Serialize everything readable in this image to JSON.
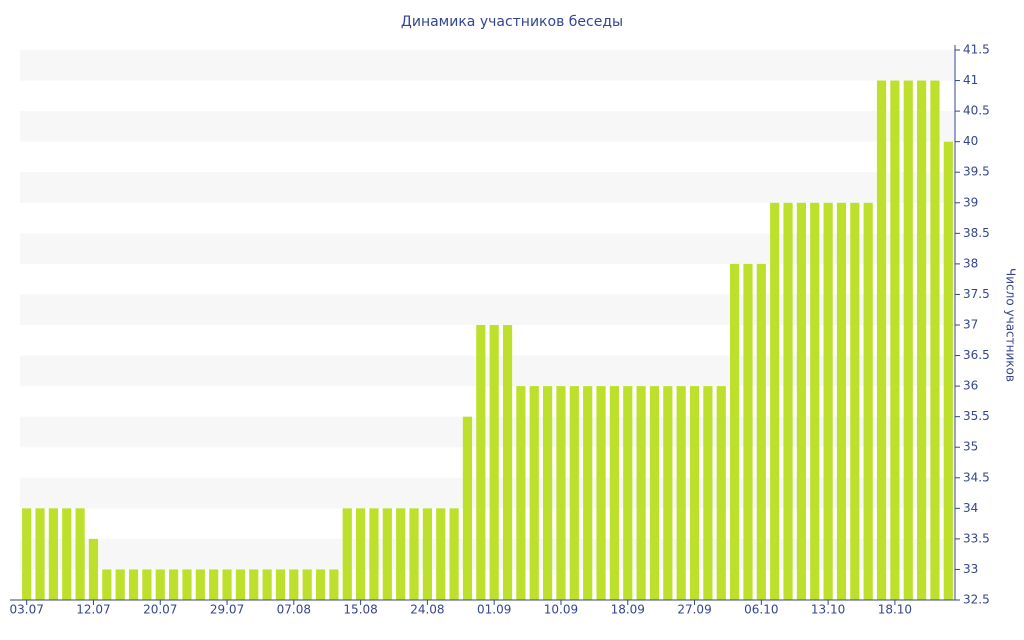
{
  "chart_data": {
    "type": "bar",
    "title": "Динамика участников беседы",
    "y_label": "Число участников",
    "categories": [
      "03.07",
      null,
      null,
      null,
      null,
      "12.07",
      null,
      null,
      null,
      null,
      "20.07",
      null,
      null,
      null,
      null,
      "29.07",
      null,
      null,
      null,
      null,
      "07.08",
      null,
      null,
      null,
      null,
      "15.08",
      null,
      null,
      null,
      null,
      "24.08",
      null,
      null,
      null,
      null,
      "01.09",
      null,
      null,
      null,
      null,
      "10.09",
      null,
      null,
      null,
      null,
      "18.09",
      null,
      null,
      null,
      null,
      "27.09",
      null,
      null,
      null,
      null,
      "06.10",
      null,
      null,
      null,
      null,
      "13.10",
      null,
      null,
      null,
      null,
      "18.10",
      null,
      null,
      null,
      null
    ],
    "values": [
      34,
      34,
      34,
      34,
      34,
      33.5,
      33,
      33,
      33,
      33,
      33,
      33,
      33,
      33,
      33,
      33,
      33,
      33,
      33,
      33,
      33,
      33,
      33,
      33,
      34,
      34,
      34,
      34,
      34,
      34,
      34,
      34,
      34,
      35.5,
      37,
      37,
      37,
      36,
      36,
      36,
      36,
      36,
      36,
      36,
      36,
      36,
      36,
      36,
      36,
      36,
      36,
      36,
      36,
      38,
      38,
      38,
      39,
      39,
      39,
      39,
      39,
      39,
      39,
      39,
      41,
      41,
      41,
      41,
      41,
      40
    ],
    "color": "#bde02c",
    "ylim": [
      32.5,
      41.5
    ],
    "yticks": [
      32.5,
      33,
      33.5,
      34,
      34.5,
      35,
      35.5,
      36,
      36.5,
      37,
      37.5,
      38,
      38.5,
      39,
      39.5,
      40,
      40.5,
      41,
      41.5
    ],
    "y_axis_side": "right",
    "grid": true
  }
}
